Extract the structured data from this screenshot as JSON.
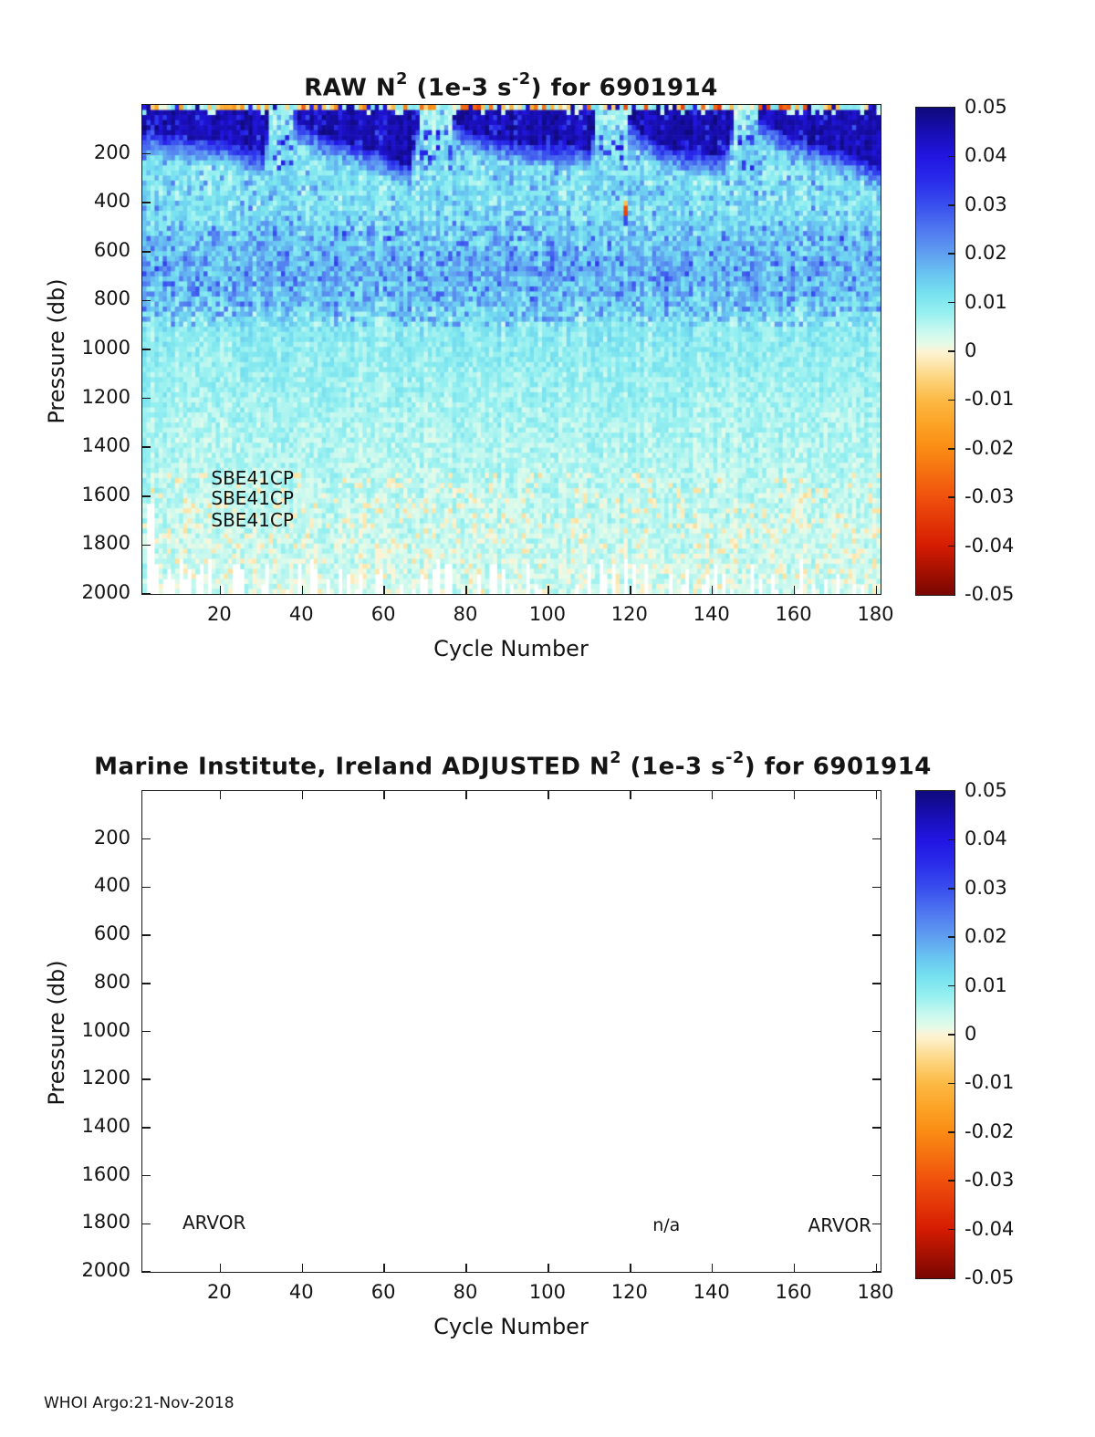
{
  "footer": {
    "text": "WHOI Argo:21-Nov-2018"
  },
  "colorbar": {
    "tick_labels": [
      "0.05",
      "0.04",
      "0.03",
      "0.02",
      "0.01",
      "0",
      "-0.01",
      "-0.02",
      "-0.03",
      "-0.04",
      "-0.05"
    ]
  },
  "figures": [
    {
      "title_parts": {
        "prefix": "RAW N",
        "sup1": "2",
        "mid": " (1e-3 s",
        "sup2": "-2",
        "suffix": ") for 6901914"
      },
      "xlabel": "Cycle Number",
      "ylabel": "Pressure (db)",
      "x_ticks": [
        20,
        40,
        60,
        80,
        100,
        120,
        140,
        160,
        180
      ],
      "y_ticks": [
        200,
        400,
        600,
        800,
        1000,
        1200,
        1400,
        1600,
        1800,
        2000
      ],
      "annotations": [
        {
          "text": "SBE41CP",
          "align": "left",
          "cycle": 18,
          "pressure": 1530
        },
        {
          "text": "SBE41CP",
          "align": "left",
          "cycle": 18,
          "pressure": 1612
        },
        {
          "text": "SBE41CP",
          "align": "left",
          "cycle": 18,
          "pressure": 1701
        }
      ]
    },
    {
      "title_parts": {
        "prefix": "Marine Institute, Ireland  ADJUSTED N",
        "sup1": "2",
        "mid": " (1e-3 s",
        "sup2": "-2",
        "suffix": ") for 6901914"
      },
      "xlabel": "Cycle Number",
      "ylabel": "Pressure (db)",
      "x_ticks": [
        20,
        40,
        60,
        80,
        100,
        120,
        140,
        160,
        180
      ],
      "y_ticks": [
        200,
        400,
        600,
        800,
        1000,
        1200,
        1400,
        1600,
        1800,
        2000
      ],
      "annotations": [
        {
          "text": "ARVOR",
          "align": "left",
          "cycle": 11,
          "pressure": 1800
        },
        {
          "text": "n/a",
          "align": "center",
          "cycle": 129,
          "pressure": 1812
        },
        {
          "text": "ARVOR",
          "align": "right",
          "cycle": 179,
          "pressure": 1812
        }
      ]
    }
  ],
  "chart_data": [
    {
      "type": "heatmap",
      "title": "RAW N^2 (1e-3 s^-2) for 6901914",
      "xlabel": "Cycle Number",
      "ylabel": "Pressure (db)",
      "xlim": [
        1,
        181
      ],
      "ylim": [
        0,
        2000
      ],
      "y_axis_reversed": true,
      "units": "1e-3 s^-2",
      "grid": false,
      "colorbar": {
        "vmin": -0.05,
        "vmax": 0.05,
        "ticks": [
          0.05,
          0.04,
          0.03,
          0.02,
          0.01,
          0,
          -0.01,
          -0.02,
          -0.03,
          -0.04,
          -0.05
        ],
        "position": "right"
      },
      "colormap_stops": [
        [
          -0.05,
          122,
          6,
          2
        ],
        [
          -0.04,
          213,
          28,
          2
        ],
        [
          -0.03,
          240,
          81,
          13
        ],
        [
          -0.02,
          250,
          140,
          20
        ],
        [
          -0.015,
          252,
          163,
          38
        ],
        [
          -0.01,
          252,
          186,
          69
        ],
        [
          -0.005,
          253,
          216,
          134
        ],
        [
          -0.001,
          253,
          240,
          200
        ],
        [
          0.0,
          253,
          244,
          214
        ],
        [
          0.0015,
          230,
          251,
          232
        ],
        [
          0.004,
          203,
          249,
          239
        ],
        [
          0.008,
          150,
          240,
          240
        ],
        [
          0.012,
          118,
          225,
          239
        ],
        [
          0.016,
          105,
          196,
          241
        ],
        [
          0.02,
          96,
          160,
          240
        ],
        [
          0.025,
          80,
          120,
          240
        ],
        [
          0.03,
          58,
          80,
          238
        ],
        [
          0.035,
          42,
          45,
          234
        ],
        [
          0.04,
          34,
          22,
          226
        ],
        [
          0.045,
          24,
          14,
          180
        ],
        [
          0.05,
          15,
          10,
          124
        ]
      ],
      "values_coarse": {
        "comment": "approximate mean N^2 (1e-3 s^-2) read from the pixels, rows = pressure bins, cols = cycle bins",
        "cycles": [
          5,
          15,
          25,
          35,
          45,
          55,
          65,
          75,
          85,
          95,
          105,
          115,
          125,
          135,
          145,
          155,
          165,
          175
        ],
        "pressures": [
          25,
          75,
          150,
          300,
          500,
          700,
          900,
          1100,
          1400,
          1800
        ],
        "values": [
          [
            0.046,
            0.046,
            0.047,
            0.008,
            0.046,
            0.046,
            0.045,
            0.006,
            0.046,
            0.046,
            0.046,
            0.01,
            0.046,
            0.046,
            0.007,
            0.045,
            0.046,
            0.046
          ],
          [
            0.043,
            0.042,
            0.044,
            0.012,
            0.042,
            0.043,
            0.04,
            0.012,
            0.042,
            0.042,
            0.041,
            0.012,
            0.042,
            0.042,
            0.012,
            0.04,
            0.042,
            0.043
          ],
          [
            0.02,
            0.022,
            0.035,
            0.015,
            0.02,
            0.03,
            0.038,
            0.014,
            0.02,
            0.025,
            0.03,
            0.013,
            0.022,
            0.028,
            0.014,
            0.02,
            0.028,
            0.036
          ],
          [
            0.012,
            0.012,
            0.013,
            0.012,
            0.012,
            0.013,
            0.014,
            0.012,
            0.012,
            0.012,
            0.013,
            0.012,
            0.012,
            0.012,
            0.012,
            0.012,
            0.013,
            0.013
          ],
          [
            0.012,
            0.012,
            0.012,
            0.012,
            0.012,
            0.012,
            0.013,
            0.012,
            0.012,
            0.012,
            0.013,
            0.012,
            0.012,
            0.012,
            0.012,
            0.012,
            0.012,
            0.012
          ],
          [
            0.016,
            0.017,
            0.016,
            0.015,
            0.016,
            0.017,
            0.016,
            0.015,
            0.015,
            0.016,
            0.016,
            0.015,
            0.015,
            0.015,
            0.014,
            0.015,
            0.015,
            0.015
          ],
          [
            0.01,
            0.01,
            0.01,
            0.009,
            0.01,
            0.01,
            0.01,
            0.009,
            0.009,
            0.009,
            0.01,
            0.009,
            0.009,
            0.009,
            0.009,
            0.009,
            0.009,
            0.009
          ],
          [
            0.008,
            0.008,
            0.008,
            0.008,
            0.008,
            0.008,
            0.008,
            0.007,
            0.007,
            0.008,
            0.008,
            0.007,
            0.007,
            0.007,
            0.007,
            0.007,
            0.007,
            0.007
          ],
          [
            0.006,
            0.006,
            0.006,
            0.006,
            0.006,
            0.006,
            0.006,
            0.005,
            0.005,
            0.006,
            0.006,
            0.005,
            0.005,
            0.005,
            0.005,
            0.005,
            0.005,
            0.005
          ],
          [
            0.004,
            0.004,
            0.004,
            0.004,
            0.004,
            0.004,
            0.004,
            0.004,
            0.004,
            0.004,
            0.004,
            0.004,
            0.004,
            0.004,
            0.004,
            0.004,
            0.004,
            0.004
          ]
        ]
      },
      "features": {
        "mixed_layer_anchors": [
          [
            1,
            115
          ],
          [
            6,
            125
          ],
          [
            12,
            135
          ],
          [
            20,
            150
          ],
          [
            27,
            185
          ],
          [
            30,
            200
          ],
          [
            32,
            40
          ],
          [
            35,
            22
          ],
          [
            38,
            60
          ],
          [
            41,
            100
          ],
          [
            46,
            130
          ],
          [
            52,
            160
          ],
          [
            58,
            195
          ],
          [
            63,
            235
          ],
          [
            66,
            250
          ],
          [
            69,
            45
          ],
          [
            73,
            25
          ],
          [
            77,
            60
          ],
          [
            80,
            105
          ],
          [
            86,
            135
          ],
          [
            93,
            155
          ],
          [
            100,
            165
          ],
          [
            107,
            175
          ],
          [
            110,
            185
          ],
          [
            112,
            45
          ],
          [
            117,
            26
          ],
          [
            120,
            60
          ],
          [
            123,
            120
          ],
          [
            128,
            170
          ],
          [
            133,
            185
          ],
          [
            139,
            200
          ],
          [
            143,
            215
          ],
          [
            146,
            45
          ],
          [
            149,
            30
          ],
          [
            152,
            60
          ],
          [
            155,
            95
          ],
          [
            160,
            135
          ],
          [
            166,
            165
          ],
          [
            172,
            195
          ],
          [
            177,
            225
          ],
          [
            181,
            260
          ]
        ],
        "winter_gap_threshold_db": 55,
        "background_profile": [
          [
            0,
            0.012
          ],
          [
            150,
            0.013
          ],
          [
            250,
            0.011
          ],
          [
            400,
            0.011
          ],
          [
            550,
            0.014
          ],
          [
            650,
            0.017
          ],
          [
            780,
            0.015
          ],
          [
            900,
            0.01
          ],
          [
            1100,
            0.008
          ],
          [
            1300,
            0.0065
          ],
          [
            1600,
            0.005
          ],
          [
            2000,
            0.0035
          ]
        ],
        "anomaly": {
          "cycle": 119,
          "yellow_p": [
            390,
            412
          ],
          "orange_p": [
            412,
            448
          ],
          "orange_value": -0.025,
          "blue_p": [
            448,
            505
          ],
          "blue_value": 0.03
        },
        "surface_row_speckle": true,
        "missing_bottom_notches": true,
        "shallow_columns": [
          2,
          3
        ]
      }
    },
    {
      "type": "heatmap",
      "title": "Marine Institute, Ireland  ADJUSTED N^2 (1e-3 s^-2) for 6901914",
      "xlabel": "Cycle Number",
      "ylabel": "Pressure (db)",
      "xlim": [
        1,
        181
      ],
      "ylim": [
        0,
        2000
      ],
      "y_axis_reversed": true,
      "units": "1e-3 s^-2",
      "colorbar": {
        "vmin": -0.05,
        "vmax": 0.05,
        "ticks": [
          0.05,
          0.04,
          0.03,
          0.02,
          0.01,
          0,
          -0.01,
          -0.02,
          -0.03,
          -0.04,
          -0.05
        ],
        "position": "right"
      },
      "values": [],
      "note": "no adjusted data plotted; axes are empty with text annotations ARVOR, n/a, ARVOR"
    }
  ]
}
